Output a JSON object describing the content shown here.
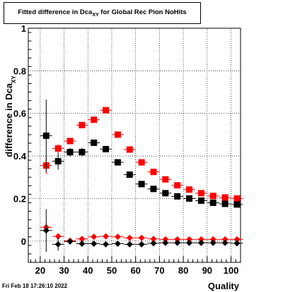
{
  "title": {
    "main": "Fitted difference in Dca",
    "sub": "XY",
    "tail": " for Global Rec Pion NoHits"
  },
  "timestamp": "Fri Feb 18 17:26:10 2022",
  "colors": {
    "series_red": "#ff0000",
    "series_black": "#000000",
    "grid": "#000000",
    "frame": "#000000"
  },
  "chart_data": {
    "type": "scatter",
    "title": "Fitted difference in Dca_XY for Global Rec Pion NoHits",
    "xlabel": "Quality",
    "ylabel": "difference in Dca_XY",
    "xlim": [
      15,
      104
    ],
    "ylim": [
      -0.1,
      1.0
    ],
    "grid": true,
    "xticks": [
      20,
      30,
      40,
      50,
      60,
      70,
      80,
      90,
      100
    ],
    "yticks": [
      0,
      0.2,
      0.4,
      0.6,
      0.8,
      1
    ],
    "ytick_labels": [
      "0",
      "0.2",
      "0.4",
      "0.6",
      "0.8",
      "1"
    ],
    "x_bin_halfwidth": 2.5,
    "series": [
      {
        "marker": "square",
        "color": "#ff0000",
        "x": [
          22.5,
          27.5,
          32.5,
          37.5,
          42.5,
          47.5,
          52.5,
          57.5,
          62.5,
          67.5,
          72.5,
          77.5,
          82.5,
          87.5,
          92.5,
          97.5,
          102.5
        ],
        "y": [
          0.355,
          0.435,
          0.47,
          0.545,
          0.57,
          0.615,
          0.5,
          0.43,
          0.37,
          0.325,
          0.29,
          0.262,
          0.242,
          0.225,
          0.212,
          0.205,
          0.2
        ],
        "yerr": [
          0.04,
          0.02,
          0.015,
          0.012,
          0.01,
          0.01,
          0.01,
          0.008,
          0.008,
          0.007,
          0.006,
          0.006,
          0.005,
          0.005,
          0.005,
          0.005,
          0.005
        ]
      },
      {
        "marker": "square",
        "color": "#000000",
        "x": [
          22.5,
          27.5,
          32.5,
          37.5,
          42.5,
          47.5,
          52.5,
          57.5,
          62.5,
          67.5,
          72.5,
          77.5,
          82.5,
          87.5,
          92.5,
          97.5,
          102.5
        ],
        "y": [
          0.495,
          0.375,
          0.418,
          0.418,
          0.462,
          0.432,
          0.37,
          0.312,
          0.268,
          0.245,
          0.225,
          0.21,
          0.2,
          0.19,
          0.18,
          0.175,
          0.172
        ],
        "yerr": [
          0.17,
          0.04,
          0.02,
          0.02,
          0.01,
          0.01,
          0.01,
          0.008,
          0.008,
          0.007,
          0.006,
          0.006,
          0.005,
          0.005,
          0.005,
          0.005,
          0.005
        ]
      },
      {
        "marker": "diamond",
        "color": "#ff0000",
        "x": [
          22.5,
          27.5,
          32.5,
          37.5,
          42.5,
          47.5,
          52.5,
          57.5,
          62.5,
          67.5,
          72.5,
          77.5,
          82.5,
          87.5,
          92.5,
          97.5,
          102.5
        ],
        "y": [
          0.065,
          0.022,
          0.002,
          0.01,
          0.02,
          0.022,
          0.02,
          0.015,
          0.015,
          0.01,
          0.008,
          0.008,
          0.008,
          0.008,
          0.008,
          0.008,
          0.008
        ],
        "yerr": [
          0.02,
          0.01,
          0.006,
          0.005,
          0.004,
          0.004,
          0.004,
          0.003,
          0.003,
          0.003,
          0.003,
          0.003,
          0.003,
          0.003,
          0.003,
          0.003,
          0.003
        ]
      },
      {
        "marker": "diamond",
        "color": "#000000",
        "x": [
          22.5,
          27.5,
          32.5,
          37.5,
          42.5,
          47.5,
          52.5,
          57.5,
          62.5,
          67.5,
          72.5,
          77.5,
          82.5,
          87.5,
          92.5,
          97.5,
          102.5
        ],
        "y": [
          0.05,
          -0.015,
          -0.002,
          -0.012,
          -0.012,
          -0.015,
          -0.012,
          -0.015,
          -0.015,
          -0.01,
          -0.008,
          -0.008,
          -0.008,
          -0.008,
          -0.008,
          -0.008,
          -0.01
        ],
        "yerr": [
          0.1,
          0.03,
          0.01,
          0.006,
          0.005,
          0.005,
          0.005,
          0.004,
          0.004,
          0.004,
          0.003,
          0.003,
          0.003,
          0.003,
          0.003,
          0.003,
          0.003
        ]
      }
    ]
  }
}
